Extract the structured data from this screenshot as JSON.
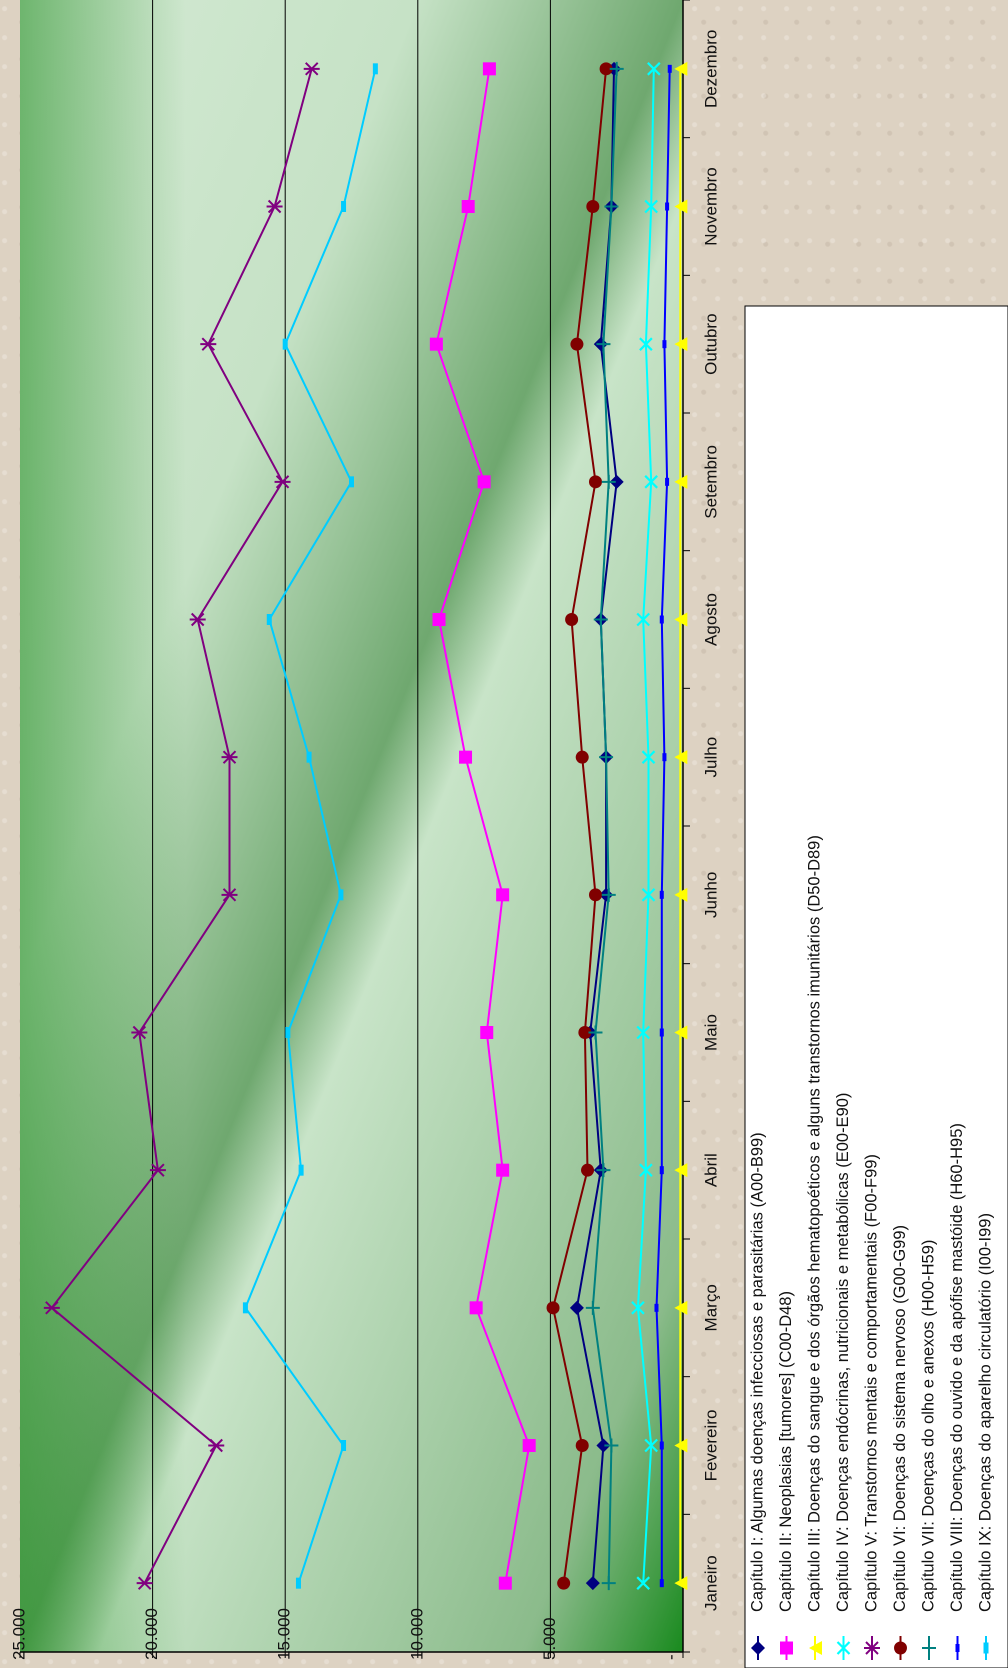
{
  "chart_data": {
    "type": "line",
    "orientation": "rotated-90-clockwise",
    "title": "",
    "xlabel": "",
    "ylabel": "",
    "ylim": [
      0,
      25000
    ],
    "y_ticks": [
      {
        "value": 0,
        "label": "-"
      },
      {
        "value": 5000,
        "label": "5.000"
      },
      {
        "value": 10000,
        "label": "10.000"
      },
      {
        "value": 15000,
        "label": "15.000"
      },
      {
        "value": 20000,
        "label": "20.000"
      },
      {
        "value": 25000,
        "label": "25.000"
      }
    ],
    "grid": true,
    "legend_position": "right",
    "categories": [
      "Janeiro",
      "Fevereiro",
      "Março",
      "Abril",
      "Maio",
      "Junho",
      "Julho",
      "Agosto",
      "Setembro",
      "Outubro",
      "Novembro",
      "Dezembro"
    ],
    "series": [
      {
        "name": "Capítulo I: Algumas doenças infecciosas e parasitárias (A00-B99)",
        "color": "#000080",
        "marker": "diamond",
        "values": [
          3400,
          3000,
          4000,
          3100,
          3500,
          2900,
          2900,
          3100,
          2500,
          3100,
          2700,
          2600
        ]
      },
      {
        "name": "Capítulo II: Neoplasias [tumores] (C00-D48)",
        "color": "#ff00ff",
        "marker": "square",
        "values": [
          6700,
          5800,
          7800,
          6800,
          7400,
          6800,
          8200,
          9200,
          7500,
          9300,
          8100,
          7300
        ]
      },
      {
        "name": "Capítulo III: Doenças do sangue e dos órgãos hematopoéticos e alguns transtornos imunitários (D50-D89)",
        "color": "#ffff00",
        "marker": "triangle",
        "values": [
          100,
          100,
          100,
          100,
          100,
          100,
          100,
          100,
          100,
          100,
          100,
          100
        ]
      },
      {
        "name": "Capítulo IV: Doenças endócrinas, nutricionais e metabólicas (E00-E90)",
        "color": "#00ffff",
        "marker": "x",
        "values": [
          1500,
          1200,
          1700,
          1400,
          1500,
          1300,
          1300,
          1500,
          1200,
          1400,
          1200,
          1100
        ]
      },
      {
        "name": "Capítulo V: Transtornos mentais e comportamentais (F00-F99)",
        "color": "#800080",
        "marker": "star",
        "values": [
          20300,
          17600,
          23800,
          19800,
          20500,
          17100,
          17100,
          18300,
          15100,
          17900,
          15400,
          14000
        ]
      },
      {
        "name": "Capítulo VI: Doenças do sistema nervoso (G00-G99)",
        "color": "#800000",
        "marker": "circle",
        "values": [
          4500,
          3800,
          4900,
          3600,
          3700,
          3300,
          3800,
          4200,
          3300,
          4000,
          3400,
          2900
        ]
      },
      {
        "name": "Capítulo VII: Doenças do olho e anexos (H00-H59)",
        "color": "#008080",
        "marker": "plus",
        "values": [
          2800,
          2700,
          3400,
          3000,
          3300,
          2800,
          2900,
          3100,
          2800,
          3000,
          2700,
          2500
        ]
      },
      {
        "name": "Capítulo VIII: Doenças do ouvido e da apófise mastóide (H60-H95)",
        "color": "#0000ff",
        "marker": "dash",
        "values": [
          800,
          800,
          1000,
          800,
          800,
          800,
          700,
          800,
          600,
          700,
          600,
          500
        ]
      },
      {
        "name": "Capítulo IX: Doenças do aparelho circulatório (I00-I99)",
        "color": "#00ccff",
        "marker": "bar",
        "values": [
          14500,
          12800,
          16500,
          14400,
          14900,
          12900,
          14100,
          15600,
          12500,
          15000,
          12800,
          11600
        ]
      }
    ]
  }
}
